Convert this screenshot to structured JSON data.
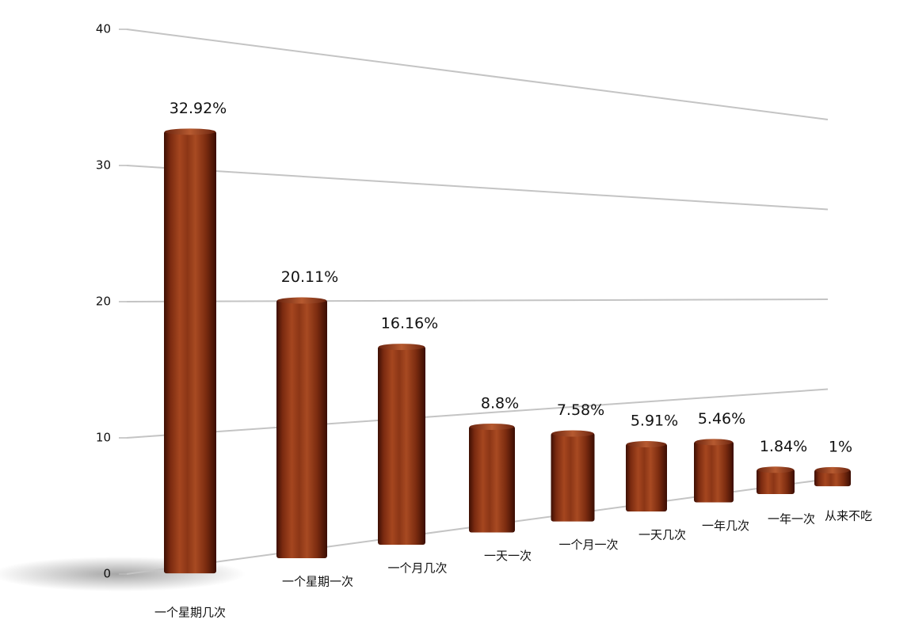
{
  "chart_data": {
    "type": "bar",
    "categories": [
      "一个星期几次",
      "一个星期一次",
      "一个月几次",
      "一天一次",
      "一个月一次",
      "一天几次",
      "一年几次",
      "一年一次",
      "从来不吃"
    ],
    "values": [
      32.92,
      20.11,
      16.16,
      8.8,
      7.58,
      5.91,
      5.46,
      1.84,
      1
    ],
    "value_labels": [
      "32.92%",
      "20.11%",
      "16.16%",
      "8.8%",
      "7.58%",
      "5.91%",
      "5.46%",
      "1.84%",
      "1%"
    ],
    "color": "#8a3214",
    "ylim": [
      0,
      40
    ],
    "yticks": [
      0,
      10,
      20,
      30,
      40
    ],
    "grid": true
  }
}
